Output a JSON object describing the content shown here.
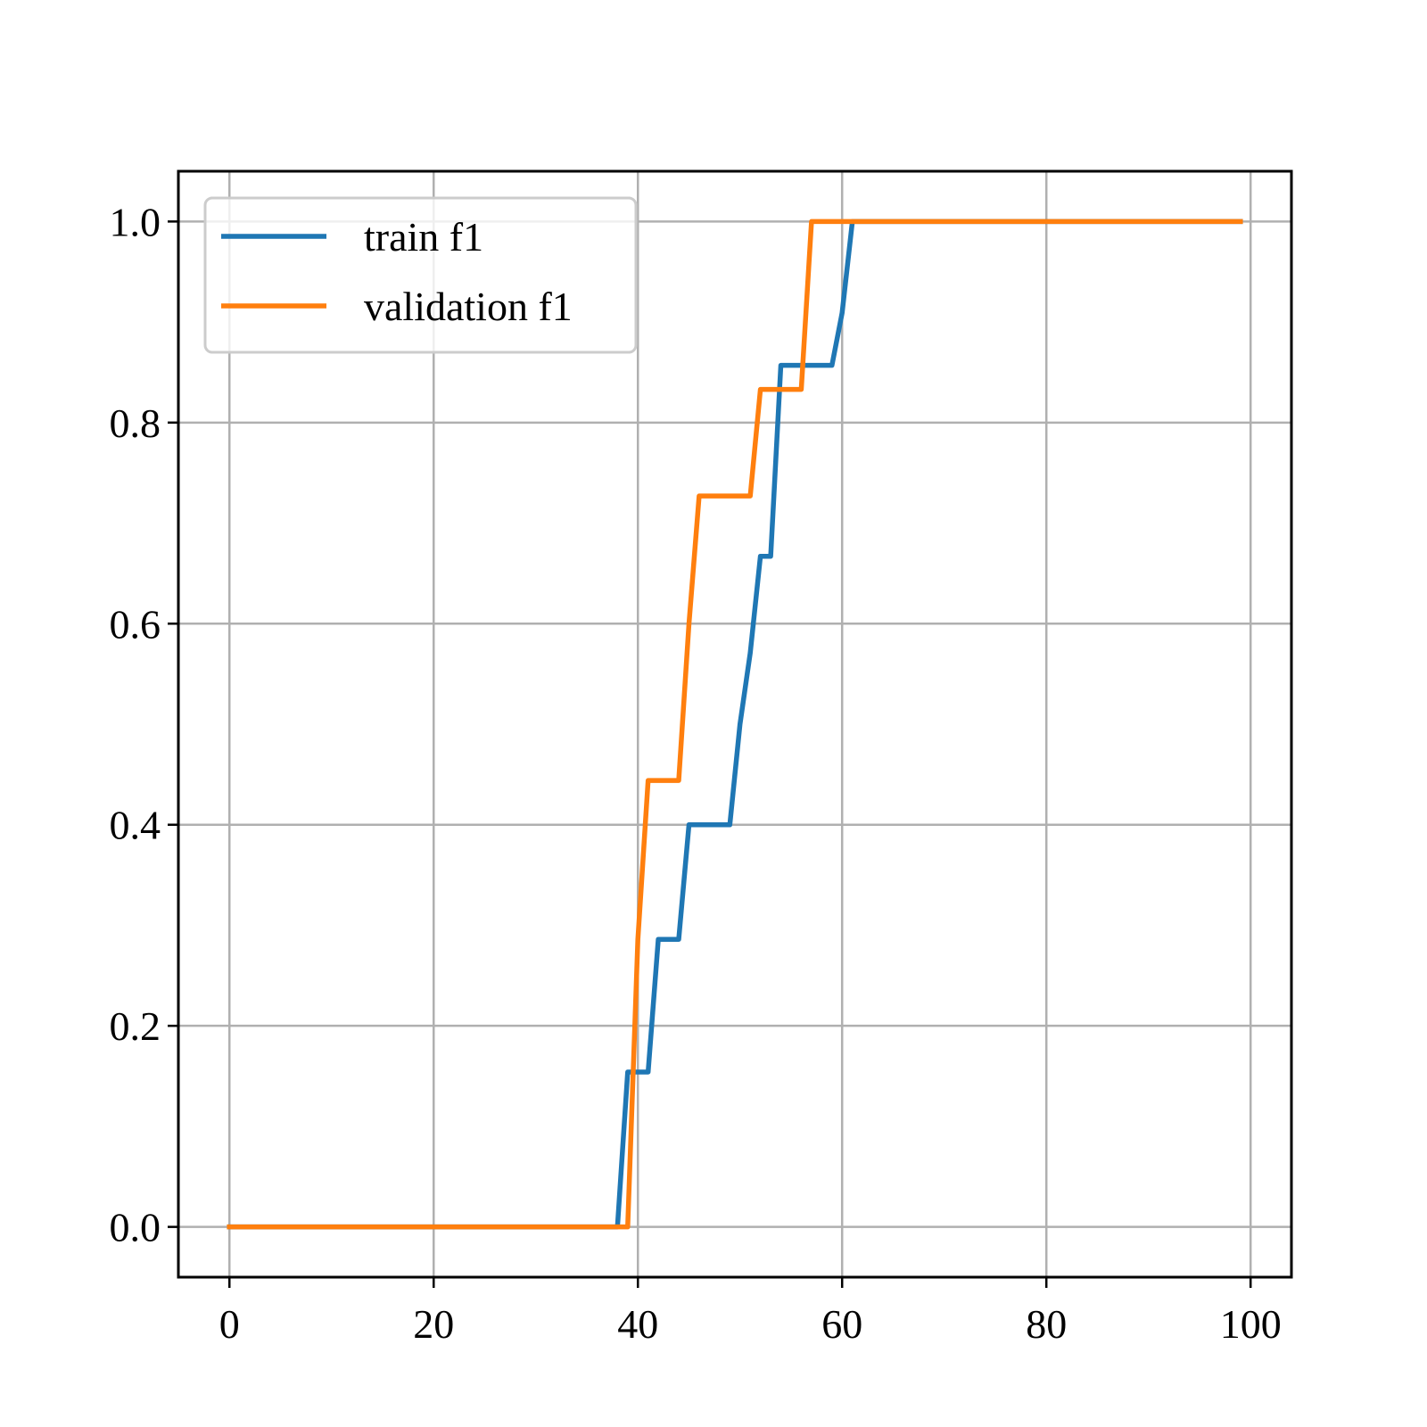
{
  "chart_data": {
    "type": "line",
    "title": "",
    "xlabel": "",
    "ylabel": "",
    "xlim": [
      -5,
      104
    ],
    "ylim": [
      -0.05,
      1.05
    ],
    "xticks": [
      0,
      20,
      40,
      60,
      80,
      100
    ],
    "xtick_labels": [
      "0",
      "20",
      "40",
      "60",
      "80",
      "100"
    ],
    "yticks": [
      0.0,
      0.2,
      0.4,
      0.6,
      0.8,
      1.0
    ],
    "ytick_labels": [
      "0.0",
      "0.2",
      "0.4",
      "0.6",
      "0.8",
      "1.0"
    ],
    "grid": true,
    "legend": {
      "position": "upper-left"
    },
    "series": [
      {
        "name": "train f1",
        "color": "#1f77b4",
        "x": [
          0,
          1,
          38,
          39,
          40,
          41,
          42,
          43,
          44,
          45,
          46,
          47,
          48,
          49,
          50,
          51,
          52,
          53,
          54,
          55,
          56,
          57,
          58,
          59,
          60,
          61,
          99
        ],
        "y": [
          0.0,
          0.0,
          0.0,
          0.154,
          0.154,
          0.154,
          0.286,
          0.286,
          0.286,
          0.4,
          0.4,
          0.4,
          0.4,
          0.4,
          0.5,
          0.571,
          0.667,
          0.667,
          0.857,
          0.857,
          0.857,
          0.857,
          0.857,
          0.857,
          0.909,
          1.0,
          1.0
        ]
      },
      {
        "name": "validation f1",
        "color": "#ff7f0e",
        "x": [
          0,
          38,
          39,
          40,
          41,
          42,
          43,
          44,
          45,
          46,
          47,
          48,
          49,
          50,
          51,
          52,
          53,
          54,
          55,
          56,
          57,
          99
        ],
        "y": [
          0.0,
          0.0,
          0.0,
          0.286,
          0.444,
          0.444,
          0.444,
          0.444,
          0.6,
          0.727,
          0.727,
          0.727,
          0.727,
          0.727,
          0.727,
          0.833,
          0.833,
          0.833,
          0.833,
          0.833,
          1.0,
          1.0
        ]
      }
    ]
  }
}
